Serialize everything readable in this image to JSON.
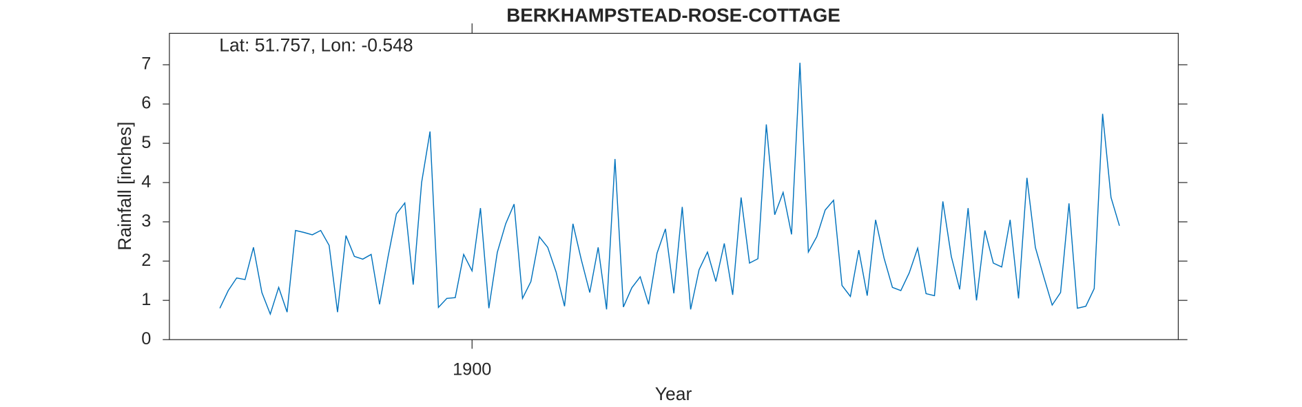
{
  "chart_data": {
    "type": "line",
    "title": "BERKHAMPSTEAD-ROSE-COTTAGE",
    "annotation": "Lat: 51.757, Lon: -0.548",
    "xlabel": "Year",
    "ylabel": "Rainfall [inches]",
    "x": [
      1870,
      1871,
      1872,
      1873,
      1874,
      1875,
      1876,
      1877,
      1878,
      1879,
      1880,
      1881,
      1882,
      1883,
      1884,
      1885,
      1886,
      1887,
      1888,
      1889,
      1890,
      1891,
      1892,
      1893,
      1894,
      1895,
      1896,
      1897,
      1898,
      1899,
      1900,
      1901,
      1902,
      1903,
      1904,
      1905,
      1906,
      1907,
      1908,
      1909,
      1910,
      1911,
      1912,
      1913,
      1914,
      1915,
      1916,
      1917,
      1918,
      1919,
      1920,
      1921,
      1922,
      1923,
      1924,
      1925,
      1926,
      1927,
      1928,
      1929,
      1930,
      1931,
      1932,
      1933,
      1934,
      1935,
      1936,
      1937,
      1938,
      1939,
      1940,
      1941,
      1942,
      1943,
      1944,
      1945,
      1946,
      1947,
      1948,
      1949,
      1950,
      1951,
      1952,
      1953,
      1954,
      1955,
      1956,
      1957,
      1958,
      1959,
      1960,
      1961,
      1962,
      1963,
      1964,
      1965,
      1966,
      1967,
      1968,
      1969,
      1970,
      1971,
      1972,
      1973,
      1974,
      1975,
      1976,
      1977
    ],
    "series": [
      {
        "color": "#0072bd",
        "values": [
          0.8,
          1.25,
          1.57,
          1.53,
          2.35,
          1.2,
          0.65,
          1.33,
          0.7,
          2.78,
          2.73,
          2.67,
          2.78,
          2.4,
          0.7,
          2.65,
          2.12,
          2.05,
          2.17,
          0.9,
          2.1,
          3.2,
          3.48,
          1.4,
          4.0,
          5.3,
          0.82,
          1.05,
          1.07,
          2.17,
          1.75,
          3.35,
          0.8,
          2.22,
          2.95,
          3.45,
          1.05,
          1.48,
          2.62,
          2.35,
          1.72,
          0.85,
          2.95,
          2.03,
          1.2,
          2.35,
          0.77,
          4.6,
          0.83,
          1.32,
          1.6,
          0.9,
          2.2,
          2.82,
          1.18,
          3.38,
          0.77,
          1.78,
          2.23,
          1.48,
          2.45,
          1.14,
          3.62,
          1.95,
          2.06,
          5.48,
          3.18,
          3.75,
          2.68,
          7.05,
          2.23,
          2.62,
          3.3,
          3.55,
          1.38,
          1.1,
          2.28,
          1.12,
          3.05,
          2.08,
          1.33,
          1.25,
          1.7,
          2.33,
          1.17,
          1.12,
          3.52,
          2.12,
          1.28,
          3.35,
          1.0,
          2.78,
          1.95,
          1.85,
          3.05,
          1.05,
          4.12,
          2.35,
          1.6,
          0.88,
          1.2,
          3.47,
          0.8,
          0.85,
          1.3,
          5.75,
          3.62,
          2.9
        ]
      }
    ],
    "xlim": [
      1864,
      1984
    ],
    "xticks": [
      1900
    ],
    "ylim": [
      0,
      7.8
    ],
    "yticks": [
      0,
      1,
      2,
      3,
      4,
      5,
      6,
      7
    ],
    "grid": false
  }
}
